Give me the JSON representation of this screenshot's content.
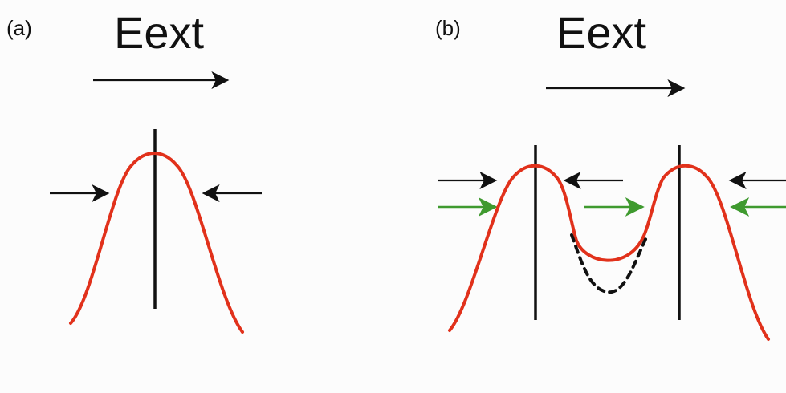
{
  "colors": {
    "background": "#fcfcfc",
    "ink": "#111111",
    "curve": "#e1311b",
    "green_arrow": "#3f9a2f"
  },
  "panels": [
    {
      "label": "(a)",
      "field_label": "Eext"
    },
    {
      "label": "(b)",
      "field_label": "Eext"
    }
  ]
}
